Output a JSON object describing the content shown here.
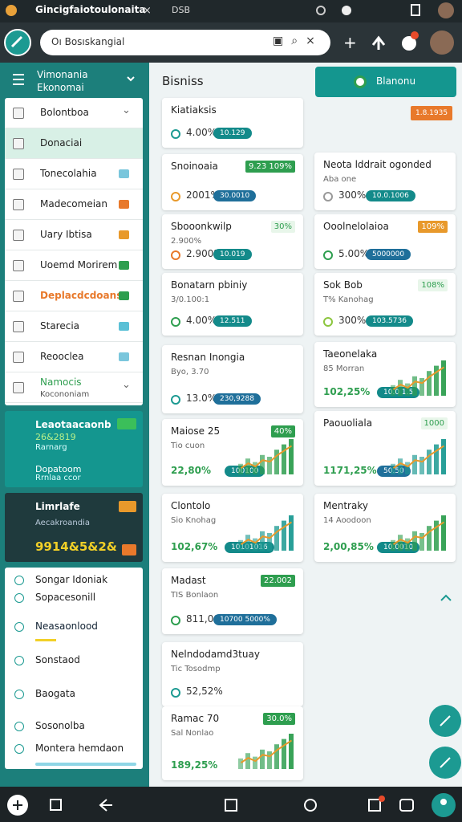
{
  "browser": {
    "tab_title": "Gincigfaiotoulonaita",
    "url": "DSB",
    "search": "Oı Bosıskangial"
  },
  "sidebar": {
    "title": "Vimonania",
    "subtitle": "Ekonomai",
    "menu": [
      "Bolontboa",
      "Donaciai",
      "Tonecolahia",
      "Madecomeian",
      "Uary Ibtisa",
      "Uoemd Morirem",
      "Deplacdcdoans",
      "Starecia",
      "Reooclea",
      "Namocis"
    ],
    "menu_sub": "Kocononiam",
    "promo": {
      "title": "Leaotaacaonb",
      "value": "26&2819",
      "line1": "Rarnarg",
      "line2": "Dopatoom",
      "line3": "Rrnlaa ccor"
    },
    "stats": {
      "title": "Limrlafe",
      "subtitle": "Aecakroandia",
      "value": "9914&5&2&"
    },
    "links": [
      "Songar Idoniak",
      "Sopacesonill",
      "Neasaonlood",
      "Sonstaod",
      "Baogata",
      "Sosonolba",
      "Montera hemdaon"
    ]
  },
  "main": {
    "title": "Bisniss",
    "cards": [
      {
        "title": "Kiatiaksis",
        "percent": "4.00%",
        "pill": "10.129"
      },
      {
        "title": "Snoinoaia",
        "badge": "9.23 109%",
        "percent": "2001%",
        "pill": "30.0010"
      },
      {
        "title": "Sbooonkwilp",
        "badge": "30%",
        "note": "2.900%",
        "percent": "2.900%",
        "pill": "10.019"
      },
      {
        "title": "Bonatarn pbiniy",
        "note": "3/0.100:1",
        "percent": "4.00%",
        "pill": "12.511"
      },
      {
        "title": "Resnan Inongia",
        "note": "Byo, 3.70",
        "percent": "13.0%",
        "pill": "230,9288"
      },
      {
        "title": "Maiose 25",
        "badge": "40%",
        "note": "Tio cuon",
        "percent": "22,80%",
        "pill": "100100"
      },
      {
        "title": "Clontolo",
        "note": "Sio Knohag",
        "percent": "102,67%",
        "pill": "10101016"
      },
      {
        "title": "Madast",
        "badge": "22.002",
        "note": "TIS Bonlaon",
        "percent": "811,09%",
        "pill": "10700 5000%"
      },
      {
        "title": "Nelndodamd3tuay",
        "note": "Tic Tosodmp",
        "percent": "52,52%"
      },
      {
        "title": "Ramac 70",
        "badge": "30.0%",
        "note": "Sal Nonlao",
        "percent": "189,25%"
      }
    ]
  },
  "right": {
    "button": "Blanonu",
    "tag": "1.8.1935",
    "cards": [
      {
        "title": "Neota lddrait ogonded",
        "note": "Aba one",
        "percent": "300%",
        "pill": "10.0.1006"
      },
      {
        "title": "Ooolnelolaioa",
        "badge": "109%",
        "percent": "5.00%",
        "pill": "5000000"
      },
      {
        "title": "Sok Bob",
        "badge": "108%",
        "note": "T% Kanohag",
        "percent": "300%",
        "pill": "103.5736"
      },
      {
        "title": "Taeonelaka",
        "note": "85 Morran",
        "percent": "102,25%",
        "pill": "10.0 1.5"
      },
      {
        "title": "Paouoliala",
        "badge": "1000",
        "percent": "1171,25%",
        "pill": "50.50"
      },
      {
        "title": "Mentraky",
        "note": "14 Aoodoon",
        "percent": "2,00,85%",
        "pill": "10.0010"
      }
    ]
  }
}
